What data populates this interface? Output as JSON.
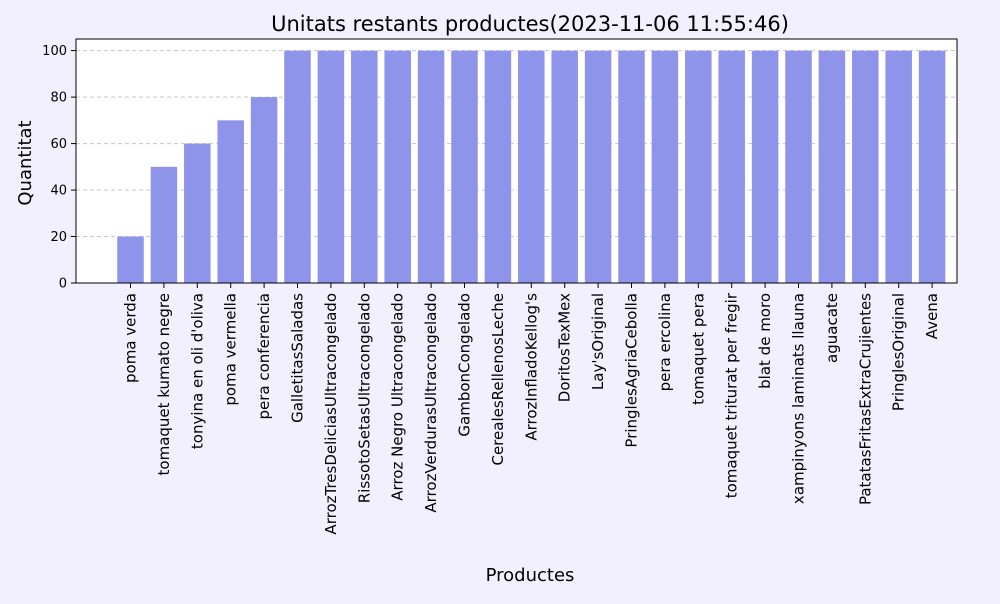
{
  "colors": {
    "figure_bg": "#f2f0ff",
    "axes_bg": "#ffffff",
    "bar": "#8f94eb",
    "grid": "#c8c8c8",
    "axis": "#000000",
    "text": "#000000"
  },
  "chart_data": {
    "type": "bar",
    "title": "Unitats restants productes(2023-11-06 11:55:46)",
    "xlabel": "Productes",
    "ylabel": "Quantitat",
    "ylim": [
      0,
      105
    ],
    "yticks": [
      0,
      20,
      40,
      60,
      80,
      100
    ],
    "grid": "y-dashed",
    "categories": [
      "poma verda",
      "tomaquet kumato negre",
      "tonyina en oli d'oliva",
      "poma vermella",
      "pera conferencia",
      "GalletitasSaladas",
      "ArrozTresDeliciasUltracongelado",
      "RissotoSetasUltracongelado",
      "Arroz Negro Ultracongelado",
      "ArrozVerdurasUltracongelado",
      "GambonCongelado",
      "CerealesRellenosLeche",
      "ArrozInfladoKellog's",
      "DoritosTexMex",
      "Lay'sOriginal",
      "PringlesAgriaCebolla",
      "pera ercolina",
      "tomaquet pera",
      "tomaquet triturat per fregir",
      "blat de moro",
      "xampinyons laminats llauna",
      "aguacate",
      "PatatasFritasExtraCrujientes",
      "PringlesOriginal",
      "Avena"
    ],
    "values": [
      20,
      50,
      60,
      70,
      80,
      100,
      100,
      100,
      100,
      100,
      100,
      100,
      100,
      100,
      100,
      100,
      100,
      100,
      100,
      100,
      100,
      100,
      100,
      100,
      100
    ]
  }
}
